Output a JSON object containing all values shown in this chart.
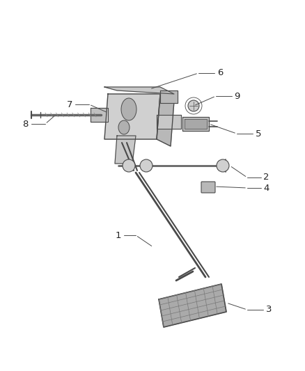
{
  "background_color": "#ffffff",
  "line_color": "#4a4a4a",
  "label_color": "#222222",
  "fig_width": 4.38,
  "fig_height": 5.33,
  "dpi": 100,
  "bracket_color_front": "#d8d8d8",
  "bracket_color_side": "#b8b8b8",
  "bracket_color_top": "#c8c8c8",
  "pedal_pad_color": "#aaaaaa",
  "rod_color": "#888888"
}
